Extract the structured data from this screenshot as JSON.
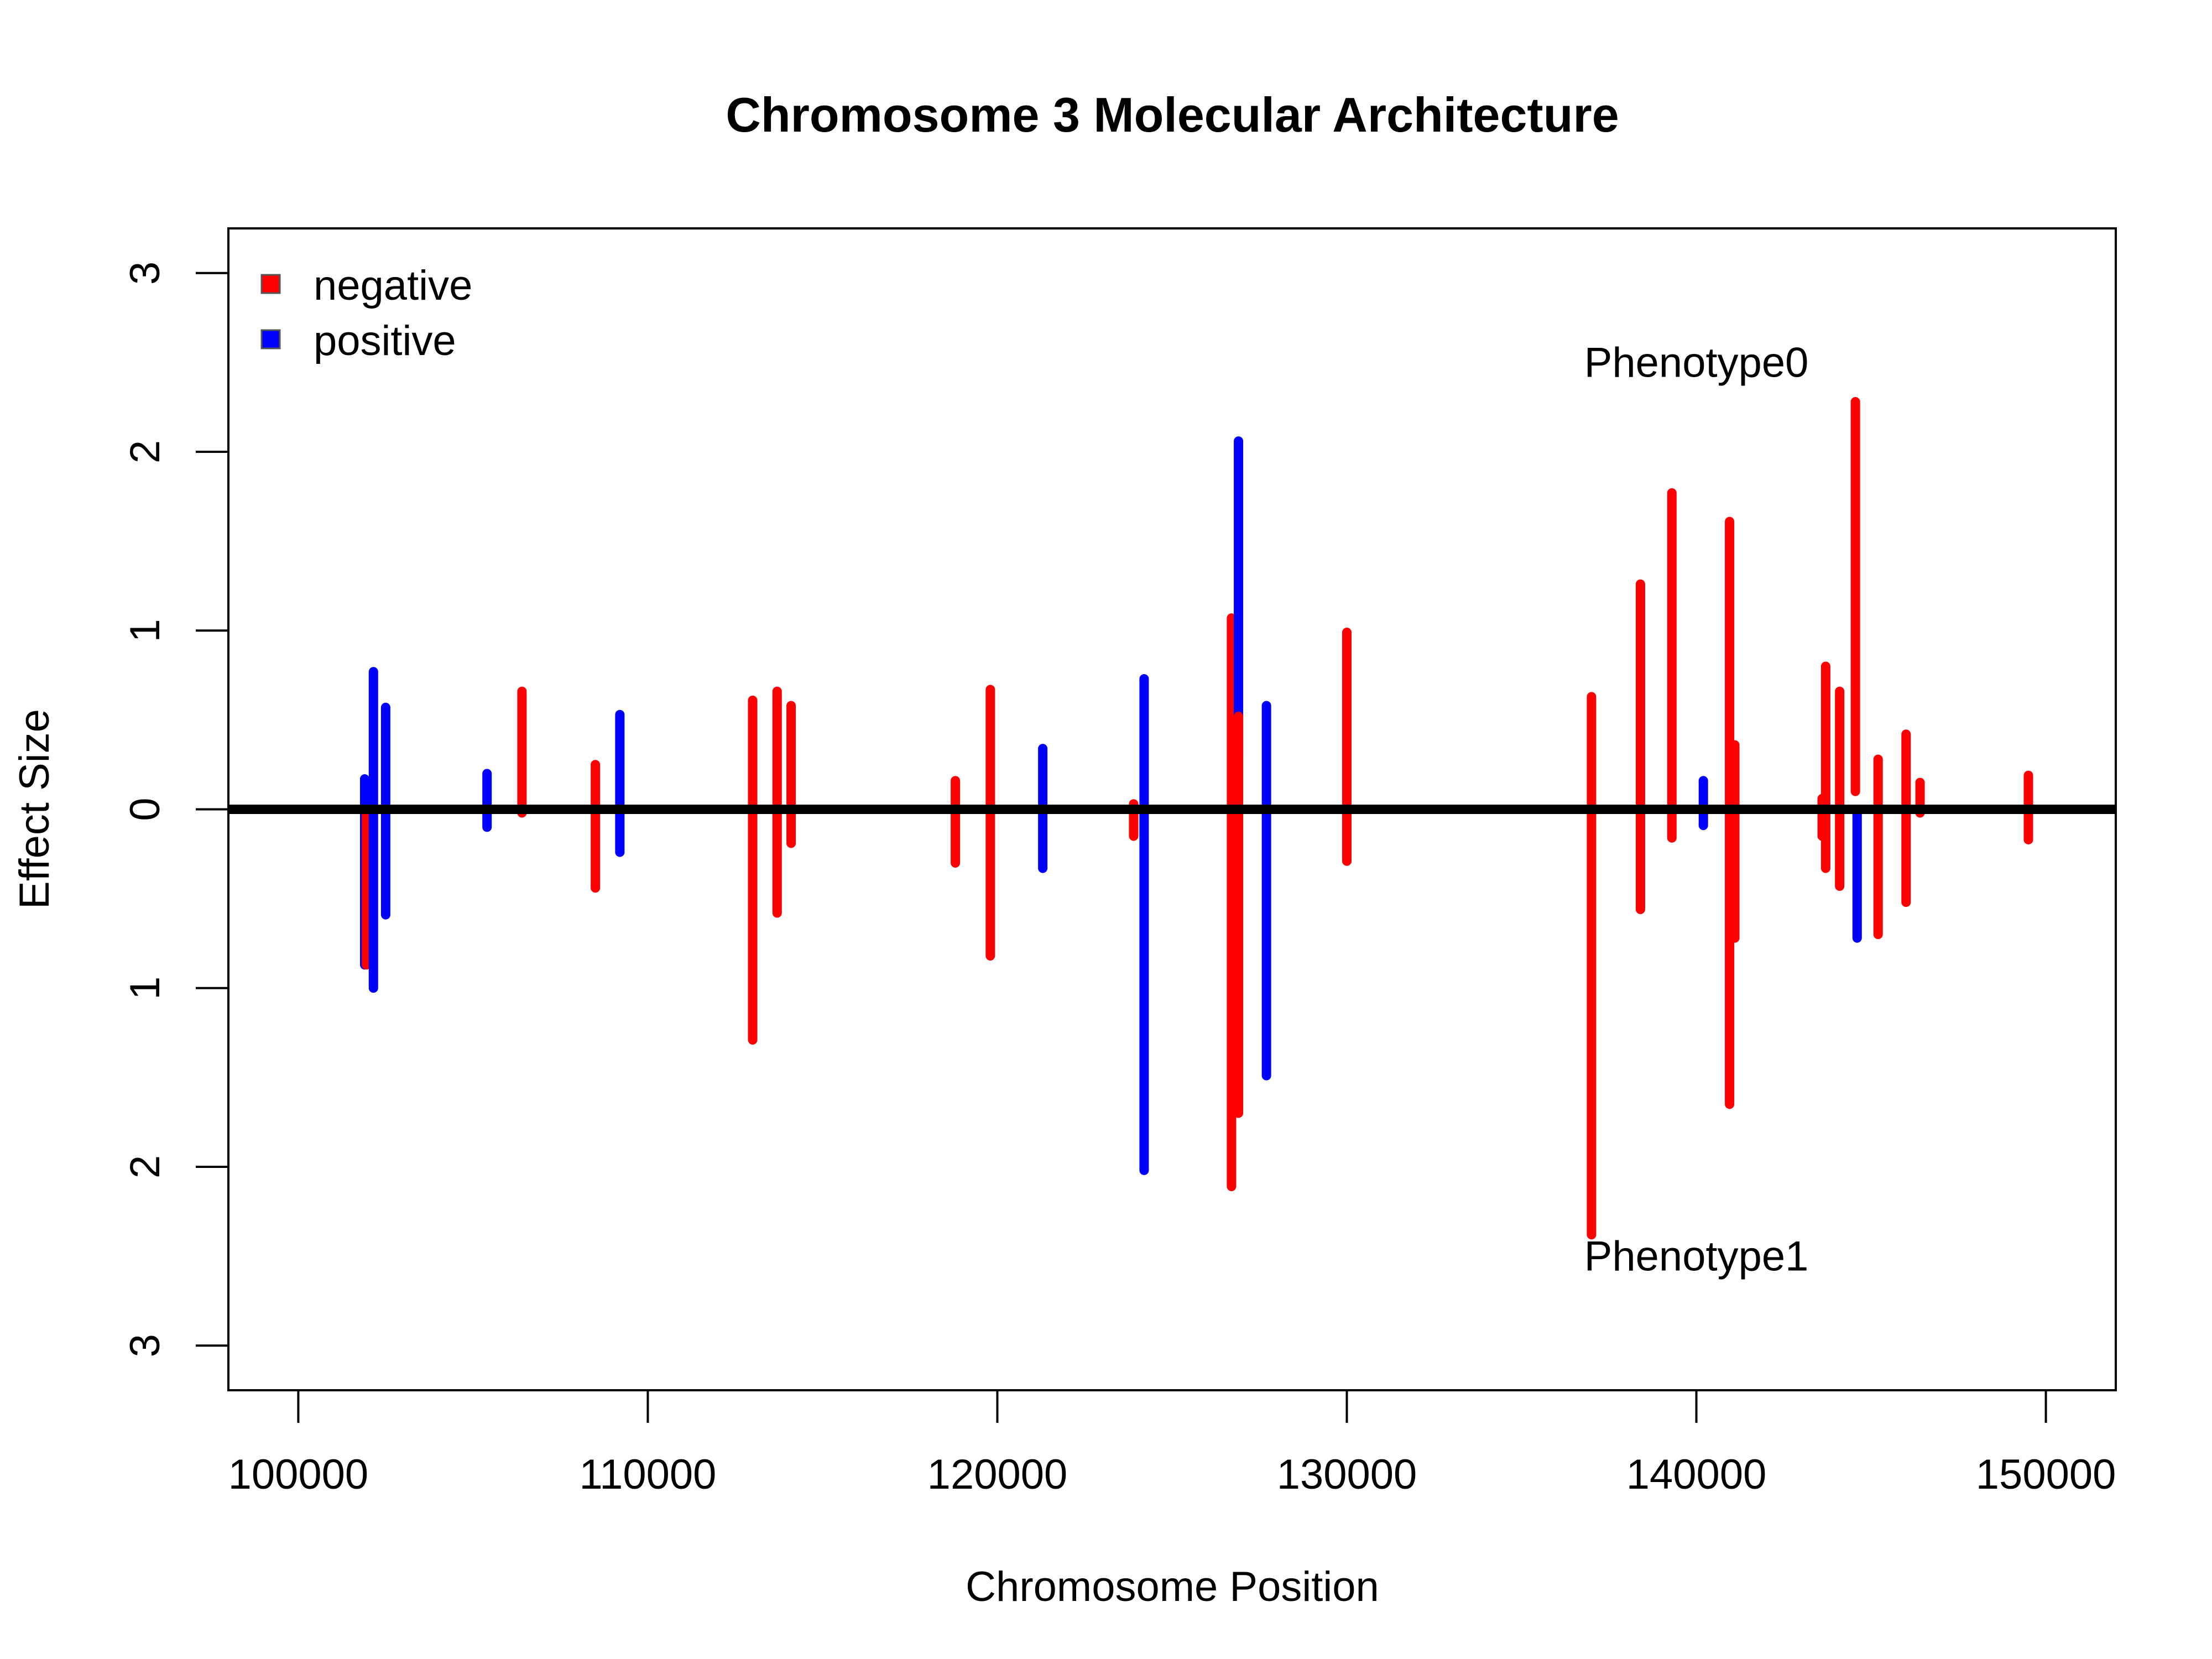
{
  "chart_data": {
    "type": "bar",
    "title": "Chromosome 3 Molecular Architecture",
    "xlabel": "Chromosome Position",
    "ylabel": "Effect Size",
    "xlim": [
      98000,
      152000
    ],
    "ylim": [
      -3.25,
      3.25
    ],
    "x_ticks": [
      100000,
      110000,
      120000,
      130000,
      140000,
      150000
    ],
    "x_tick_labels": [
      "100000",
      "110000",
      "120000",
      "130000",
      "140000",
      "150000"
    ],
    "y_ticks": [
      3,
      2,
      1,
      0,
      -1,
      -2,
      -3
    ],
    "y_tick_labels": [
      "3",
      "2",
      "1",
      "0",
      "1",
      "2",
      "3"
    ],
    "baseline": 0,
    "legend": {
      "position": "top-left",
      "entries": [
        {
          "label": "negative",
          "color": "#ff0000"
        },
        {
          "label": "positive",
          "color": "#0000ff"
        }
      ]
    },
    "annotations": [
      {
        "text": "Phenotype0",
        "x": 140000,
        "y": 2.5
      },
      {
        "text": "Phenotype1",
        "x": 140000,
        "y": -2.5
      }
    ],
    "segments": [
      {
        "x": 101900,
        "y0": 0.17,
        "y1": -0.87,
        "color": "#0000ff"
      },
      {
        "x": 101950,
        "y0": 0.0,
        "y1": -0.87,
        "color": "#ff0000"
      },
      {
        "x": 102150,
        "y0": 0.77,
        "y1": -1.0,
        "color": "#0000ff"
      },
      {
        "x": 102500,
        "y0": 0.57,
        "y1": -0.59,
        "color": "#0000ff"
      },
      {
        "x": 105400,
        "y0": 0.2,
        "y1": -0.1,
        "color": "#0000ff"
      },
      {
        "x": 106400,
        "y0": 0.66,
        "y1": -0.02,
        "color": "#ff0000"
      },
      {
        "x": 108500,
        "y0": 0.25,
        "y1": -0.44,
        "color": "#ff0000"
      },
      {
        "x": 109200,
        "y0": 0.53,
        "y1": -0.24,
        "color": "#0000ff"
      },
      {
        "x": 113000,
        "y0": 0.61,
        "y1": -1.29,
        "color": "#ff0000"
      },
      {
        "x": 113700,
        "y0": 0.66,
        "y1": -0.58,
        "color": "#ff0000"
      },
      {
        "x": 114100,
        "y0": 0.58,
        "y1": -0.19,
        "color": "#ff0000"
      },
      {
        "x": 118800,
        "y0": 0.16,
        "y1": -0.3,
        "color": "#ff0000"
      },
      {
        "x": 119800,
        "y0": 0.67,
        "y1": -0.82,
        "color": "#ff0000"
      },
      {
        "x": 121300,
        "y0": 0.34,
        "y1": -0.33,
        "color": "#0000ff"
      },
      {
        "x": 123900,
        "y0": 0.03,
        "y1": -0.15,
        "color": "#ff0000"
      },
      {
        "x": 124200,
        "y0": 0.73,
        "y1": -2.02,
        "color": "#0000ff"
      },
      {
        "x": 126700,
        "y0": 1.07,
        "y1": -2.11,
        "color": "#ff0000"
      },
      {
        "x": 126900,
        "y0": 2.06,
        "y1": 0.3,
        "color": "#0000ff"
      },
      {
        "x": 126900,
        "y0": 0.52,
        "y1": -1.7,
        "color": "#ff0000"
      },
      {
        "x": 127700,
        "y0": 0.58,
        "y1": -1.49,
        "color": "#0000ff"
      },
      {
        "x": 130000,
        "y0": 0.99,
        "y1": -0.29,
        "color": "#ff0000"
      },
      {
        "x": 137000,
        "y0": 0.63,
        "y1": -2.38,
        "color": "#ff0000"
      },
      {
        "x": 138400,
        "y0": 1.26,
        "y1": -0.56,
        "color": "#ff0000"
      },
      {
        "x": 139300,
        "y0": 1.77,
        "y1": -0.16,
        "color": "#ff0000"
      },
      {
        "x": 140200,
        "y0": 0.16,
        "y1": -0.09,
        "color": "#0000ff"
      },
      {
        "x": 140950,
        "y0": 1.61,
        "y1": -1.65,
        "color": "#ff0000"
      },
      {
        "x": 141100,
        "y0": 0.36,
        "y1": -0.72,
        "color": "#ff0000"
      },
      {
        "x": 143600,
        "y0": 0.06,
        "y1": -0.15,
        "color": "#ff0000"
      },
      {
        "x": 143700,
        "y0": 0.8,
        "y1": -0.33,
        "color": "#ff0000"
      },
      {
        "x": 144100,
        "y0": 0.66,
        "y1": -0.43,
        "color": "#ff0000"
      },
      {
        "x": 144550,
        "y0": 2.28,
        "y1": 0.1,
        "color": "#ff0000"
      },
      {
        "x": 144600,
        "y0": 0.0,
        "y1": -0.72,
        "color": "#0000ff"
      },
      {
        "x": 145200,
        "y0": 0.28,
        "y1": -0.7,
        "color": "#ff0000"
      },
      {
        "x": 146000,
        "y0": 0.42,
        "y1": -0.52,
        "color": "#ff0000"
      },
      {
        "x": 146400,
        "y0": 0.15,
        "y1": -0.02,
        "color": "#ff0000"
      },
      {
        "x": 149500,
        "y0": 0.19,
        "y1": -0.17,
        "color": "#ff0000"
      }
    ]
  }
}
